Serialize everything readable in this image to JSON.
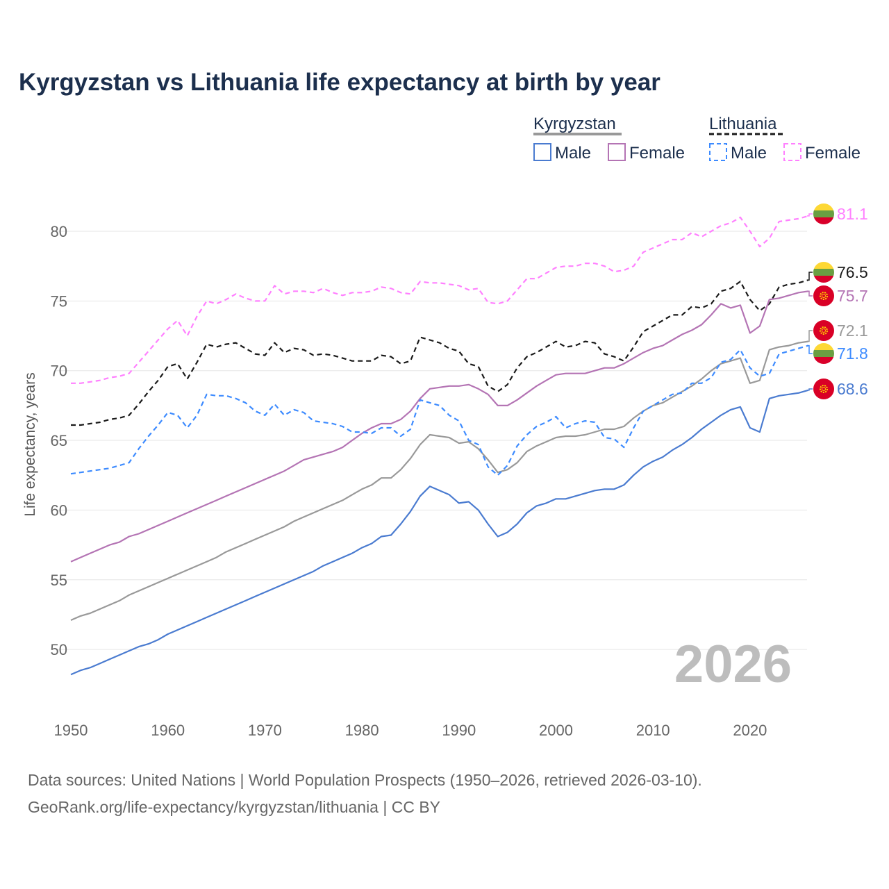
{
  "chart_data": {
    "type": "line",
    "title": "Kyrgyzstan vs Lithuania life expectancy at birth by year",
    "xlabel": "",
    "ylabel": "Life expectancy, years",
    "xlim": [
      1950,
      2026
    ],
    "ylim": [
      46,
      83
    ],
    "x_ticks": [
      "1950",
      "1960",
      "1970",
      "1980",
      "1990",
      "2000",
      "2010",
      "2020"
    ],
    "y_ticks": [
      "50",
      "55",
      "60",
      "65",
      "70",
      "75",
      "80"
    ],
    "grid": true,
    "legend_placement": "top-right",
    "legend": {
      "groups": [
        {
          "name": "Kyrgyzstan",
          "items": [
            "Male",
            "Female"
          ]
        },
        {
          "name": "Lithuania",
          "items": [
            "Male",
            "Female"
          ]
        }
      ]
    },
    "year_watermark": "2026",
    "x_start": 1950,
    "series": [
      {
        "name": "Lithuania Female",
        "color": "#ff80ff",
        "dashed": true,
        "flag": "lithuania",
        "end_label": "81.1",
        "values": [
          69.1,
          69.1,
          69.2,
          69.3,
          69.5,
          69.6,
          69.8,
          70.6,
          71.4,
          72.2,
          73.0,
          73.6,
          72.5,
          73.9,
          75.0,
          74.8,
          75.1,
          75.5,
          75.2,
          75.0,
          75.0,
          76.1,
          75.5,
          75.7,
          75.7,
          75.6,
          75.9,
          75.6,
          75.4,
          75.6,
          75.6,
          75.7,
          76.0,
          75.9,
          75.6,
          75.5,
          76.4,
          76.3,
          76.3,
          76.2,
          76.1,
          75.8,
          75.9,
          74.9,
          74.8,
          75.0,
          75.8,
          76.6,
          76.6,
          77.0,
          77.4,
          77.5,
          77.5,
          77.7,
          77.7,
          77.5,
          77.1,
          77.2,
          77.5,
          78.5,
          78.8,
          79.1,
          79.4,
          79.4,
          79.9,
          79.6,
          80.0,
          80.4,
          80.6,
          81.0,
          80.0,
          78.9,
          79.5,
          80.7,
          80.8,
          80.9,
          81.1
        ]
      },
      {
        "name": "Lithuania Total",
        "color": "#1a1a1a",
        "dashed": true,
        "flag": "lithuania",
        "end_label": "76.5",
        "values": [
          66.1,
          66.1,
          66.2,
          66.3,
          66.5,
          66.6,
          66.8,
          67.6,
          68.5,
          69.3,
          70.3,
          70.5,
          69.4,
          70.6,
          71.9,
          71.7,
          71.9,
          72.0,
          71.6,
          71.2,
          71.1,
          72.0,
          71.3,
          71.6,
          71.5,
          71.1,
          71.2,
          71.1,
          70.9,
          70.7,
          70.7,
          70.7,
          71.1,
          71.0,
          70.5,
          70.7,
          72.4,
          72.2,
          72.0,
          71.6,
          71.4,
          70.5,
          70.3,
          68.9,
          68.5,
          69.0,
          70.2,
          71.0,
          71.3,
          71.7,
          72.1,
          71.7,
          71.8,
          72.1,
          72.0,
          71.2,
          71.0,
          70.7,
          71.7,
          72.8,
          73.2,
          73.6,
          74.0,
          74.0,
          74.6,
          74.5,
          74.8,
          75.7,
          75.9,
          76.4,
          75.1,
          74.3,
          74.8,
          76.0,
          76.2,
          76.3,
          76.5
        ]
      },
      {
        "name": "Kyrgyzstan Female",
        "color": "#b474b4",
        "dashed": false,
        "flag": "kyrgyzstan",
        "end_label": "75.7",
        "values": [
          56.3,
          56.6,
          56.9,
          57.2,
          57.5,
          57.7,
          58.1,
          58.3,
          58.6,
          58.9,
          59.2,
          59.5,
          59.8,
          60.1,
          60.4,
          60.7,
          61.0,
          61.3,
          61.6,
          61.9,
          62.2,
          62.5,
          62.8,
          63.2,
          63.6,
          63.8,
          64.0,
          64.2,
          64.5,
          65.0,
          65.5,
          65.9,
          66.2,
          66.2,
          66.5,
          67.1,
          68.0,
          68.7,
          68.8,
          68.9,
          68.9,
          69.0,
          68.7,
          68.3,
          67.5,
          67.5,
          67.9,
          68.4,
          68.9,
          69.3,
          69.7,
          69.8,
          69.8,
          69.8,
          70.0,
          70.2,
          70.2,
          70.5,
          70.9,
          71.3,
          71.6,
          71.8,
          72.2,
          72.6,
          72.9,
          73.3,
          74.0,
          74.8,
          74.5,
          74.7,
          72.7,
          73.2,
          75.1,
          75.2,
          75.4,
          75.6,
          75.7
        ]
      },
      {
        "name": "Kyrgyzstan Total",
        "color": "#999999",
        "dashed": false,
        "flag": "kyrgyzstan",
        "end_label": "72.1",
        "values": [
          52.1,
          52.4,
          52.6,
          52.9,
          53.2,
          53.5,
          53.9,
          54.2,
          54.5,
          54.8,
          55.1,
          55.4,
          55.7,
          56.0,
          56.3,
          56.6,
          57.0,
          57.3,
          57.6,
          57.9,
          58.2,
          58.5,
          58.8,
          59.2,
          59.5,
          59.8,
          60.1,
          60.4,
          60.7,
          61.1,
          61.5,
          61.8,
          62.3,
          62.3,
          62.9,
          63.7,
          64.7,
          65.4,
          65.3,
          65.2,
          64.8,
          64.9,
          64.4,
          63.6,
          62.7,
          62.9,
          63.4,
          64.2,
          64.6,
          64.9,
          65.2,
          65.3,
          65.3,
          65.4,
          65.6,
          65.8,
          65.8,
          66.0,
          66.6,
          67.1,
          67.5,
          67.7,
          68.1,
          68.5,
          68.9,
          69.4,
          70.0,
          70.5,
          70.7,
          70.9,
          69.1,
          69.3,
          71.5,
          71.7,
          71.8,
          72.0,
          72.1
        ]
      },
      {
        "name": "Lithuania Male",
        "color": "#3d8bff",
        "dashed": true,
        "flag": "lithuania",
        "end_label": "71.8",
        "values": [
          62.6,
          62.7,
          62.8,
          62.9,
          63.0,
          63.2,
          63.4,
          64.4,
          65.3,
          66.1,
          67.0,
          66.8,
          65.9,
          66.8,
          68.3,
          68.2,
          68.2,
          68.0,
          67.7,
          67.1,
          66.8,
          67.6,
          66.8,
          67.2,
          67.0,
          66.4,
          66.3,
          66.2,
          66.0,
          65.6,
          65.6,
          65.5,
          65.9,
          65.9,
          65.3,
          65.8,
          67.9,
          67.7,
          67.5,
          66.8,
          66.4,
          65.0,
          64.7,
          63.1,
          62.5,
          63.2,
          64.6,
          65.4,
          66.0,
          66.3,
          66.7,
          65.9,
          66.2,
          66.4,
          66.3,
          65.2,
          65.1,
          64.5,
          65.9,
          67.1,
          67.5,
          67.9,
          68.3,
          68.4,
          69.1,
          69.1,
          69.5,
          70.6,
          70.8,
          71.5,
          70.2,
          69.6,
          69.8,
          71.2,
          71.4,
          71.6,
          71.8
        ]
      },
      {
        "name": "Kyrgyzstan Male",
        "color": "#4a7bd0",
        "dashed": false,
        "flag": "kyrgyzstan",
        "end_label": "68.6",
        "values": [
          48.2,
          48.5,
          48.7,
          49.0,
          49.3,
          49.6,
          49.9,
          50.2,
          50.4,
          50.7,
          51.1,
          51.4,
          51.7,
          52.0,
          52.3,
          52.6,
          52.9,
          53.2,
          53.5,
          53.8,
          54.1,
          54.4,
          54.7,
          55.0,
          55.3,
          55.6,
          56.0,
          56.3,
          56.6,
          56.9,
          57.3,
          57.6,
          58.1,
          58.2,
          59.0,
          59.9,
          61.0,
          61.7,
          61.4,
          61.1,
          60.5,
          60.6,
          60.0,
          59.0,
          58.1,
          58.4,
          59.0,
          59.8,
          60.3,
          60.5,
          60.8,
          60.8,
          61.0,
          61.2,
          61.4,
          61.5,
          61.5,
          61.8,
          62.5,
          63.1,
          63.5,
          63.8,
          64.3,
          64.7,
          65.2,
          65.8,
          66.3,
          66.8,
          67.2,
          67.4,
          65.9,
          65.6,
          68.0,
          68.2,
          68.3,
          68.4,
          68.6
        ]
      }
    ],
    "source_lines": [
      "Data sources: United Nations | World Population Prospects (1950–2026, retrieved 2026-03-10).",
      "GeoRank.org/life-expectancy/kyrgyzstan/lithuania | CC BY"
    ]
  },
  "colors": {
    "kg_red": "#d90026",
    "kg_yellow": "#ffd500",
    "lt_yellow": "#fdd835",
    "lt_green": "#6a9f42",
    "lt_red": "#d9002a"
  }
}
